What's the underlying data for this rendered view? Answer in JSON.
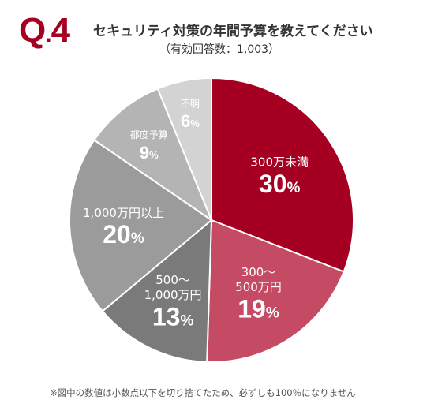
{
  "header": {
    "q_number": "Q",
    "q_dot": ".",
    "q_digit": "4",
    "title": "セキュリティ対策の年間予算を教えてください",
    "subtitle": "（有効回答数：1,003）"
  },
  "footnote": "※図中の数値は小数点以下を切り捨てたため、必ずしも100％になりません",
  "chart_data": {
    "type": "pie",
    "title": "",
    "start_angle_deg": 0,
    "direction": "clockwise",
    "slices": [
      {
        "label_lines": [
          "300万未満"
        ],
        "value": 30,
        "value_text": "30",
        "unit": "%",
        "color": "#a50021",
        "text_color": "#ffffff"
      },
      {
        "label_lines": [
          "300～",
          "500万円"
        ],
        "value": 19,
        "value_text": "19",
        "unit": "%",
        "color": "#c44b63",
        "text_color": "#ffffff"
      },
      {
        "label_lines": [
          "500～",
          "1,000万円"
        ],
        "value": 13,
        "value_text": "13",
        "unit": "%",
        "color": "#7a7a7a",
        "text_color": "#ffffff"
      },
      {
        "label_lines": [
          "1,000万円以上"
        ],
        "value": 20,
        "value_text": "20",
        "unit": "%",
        "color": "#9b9b9b",
        "text_color": "#ffffff"
      },
      {
        "label_lines": [
          "都度予算"
        ],
        "value": 9,
        "value_text": "9",
        "unit": "%",
        "color": "#b4b4b4",
        "text_color": "#ffffff"
      },
      {
        "label_lines": [
          "不明"
        ],
        "value": 6,
        "value_text": "6",
        "unit": "%",
        "color": "#d3d3d3",
        "text_color": "#ffffff"
      }
    ]
  }
}
